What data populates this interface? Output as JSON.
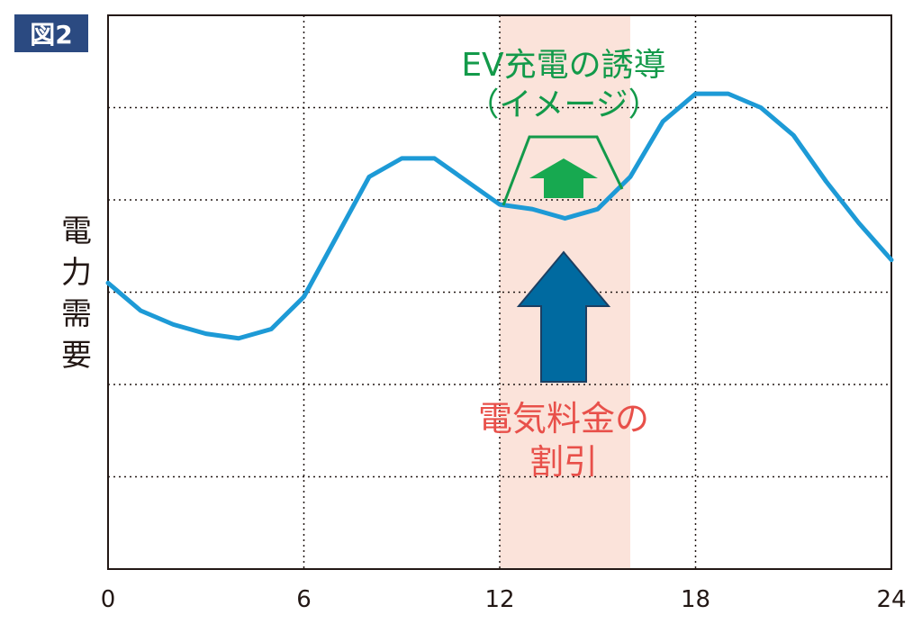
{
  "badge": "図2",
  "chart_data": {
    "type": "line",
    "ylabel": "電力需要",
    "x_ticks": [
      "0",
      "6",
      "12",
      "18",
      "24"
    ],
    "xlim": [
      0,
      24
    ],
    "ylim": [
      0,
      6
    ],
    "grid": true,
    "series": [
      {
        "x": [
          0,
          1,
          2,
          3,
          4,
          5,
          6,
          7,
          8,
          9,
          10,
          11,
          12,
          13,
          14,
          15,
          16,
          17,
          18,
          19,
          20,
          21,
          22,
          23,
          24
        ],
        "y": [
          3.1,
          2.8,
          2.65,
          2.55,
          2.5,
          2.6,
          2.95,
          3.6,
          4.25,
          4.45,
          4.45,
          4.2,
          3.95,
          3.9,
          3.8,
          3.9,
          4.25,
          4.85,
          5.15,
          5.15,
          5.0,
          4.7,
          4.2,
          3.75,
          3.35
        ],
        "color": "#1d9ad6"
      }
    ],
    "highlight_band": {
      "x": [
        12,
        16
      ],
      "color": "#fbe3da"
    },
    "annotations": {
      "ev_induction": {
        "line1": "EV充電の誘導",
        "line2": "（イメージ）",
        "color": "#139a4a"
      },
      "discount": {
        "line1": "電気料金の",
        "line2": "割引",
        "color": "#e8504a"
      }
    },
    "colors": {
      "badge": "#2b4a81",
      "blue_arrow": "#006aa0",
      "green_arrow": "#17a950"
    }
  }
}
